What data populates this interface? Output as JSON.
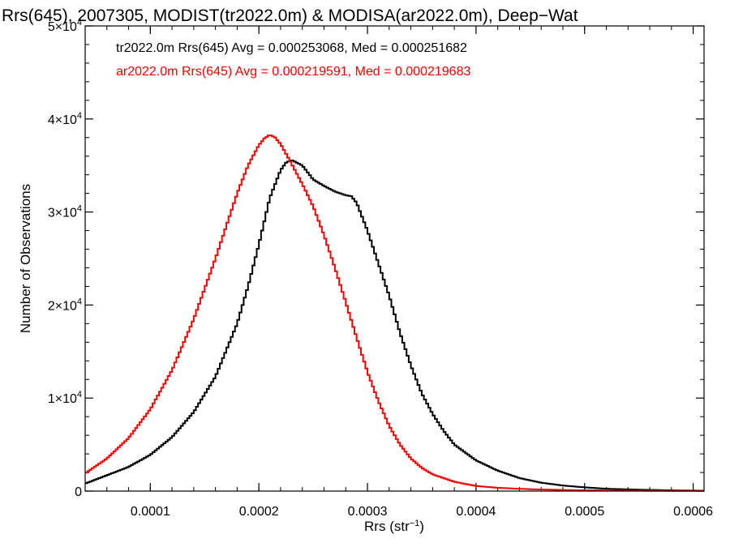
{
  "chart_data": {
    "type": "line",
    "title": "Rrs(645), 2007305, MODIST(tr2022.0m) & MODISA(ar2022.0m), Deep−Wat",
    "xlabel": "Rrs (str",
    "xlabel_sup": "−1",
    "xlabel_end": ")",
    "ylabel": "Number of Observations",
    "xlim": [
      4e-05,
      0.00061
    ],
    "ylim": [
      0,
      50000
    ],
    "x_ticks": [
      {
        "value": 0.0001,
        "label": "0.0001"
      },
      {
        "value": 0.0002,
        "label": "0.0002"
      },
      {
        "value": 0.0003,
        "label": "0.0003"
      },
      {
        "value": 0.0004,
        "label": "0.0004"
      },
      {
        "value": 0.0005,
        "label": "0.0005"
      },
      {
        "value": 0.0006,
        "label": "0.0006"
      }
    ],
    "y_ticks": [
      {
        "value": 0,
        "base": "0",
        "exp": ""
      },
      {
        "value": 10000,
        "base": "1×10",
        "exp": "4"
      },
      {
        "value": 20000,
        "base": "2×10",
        "exp": "4"
      },
      {
        "value": 30000,
        "base": "3×10",
        "exp": "4"
      },
      {
        "value": 40000,
        "base": "4×10",
        "exp": "4"
      },
      {
        "value": 50000,
        "base": "5×10",
        "exp": "4"
      }
    ],
    "annotations": [
      {
        "text": "tr2022.0m Rrs(645) Avg = 0.000253068, Med = 0.000251682",
        "color": "#000000"
      },
      {
        "text": "ar2022.0m Rrs(645) Avg = 0.000219591, Med = 0.000219683",
        "color": "#ff0000"
      }
    ],
    "series": [
      {
        "color": "#000000",
        "x": [
          4e-05,
          6e-05,
          8e-05,
          0.0001,
          0.00012,
          0.00014,
          0.00016,
          0.00018,
          0.00019,
          0.0002,
          0.00021,
          0.00022,
          0.000225,
          0.00023,
          0.00024,
          0.00025,
          0.00026,
          0.00027,
          0.00028,
          0.000285,
          0.00029,
          0.0003,
          0.00031,
          0.00032,
          0.00033,
          0.00034,
          0.00035,
          0.00036,
          0.00037,
          0.00038,
          0.0004,
          0.00042,
          0.00044,
          0.00046,
          0.00048,
          0.0005,
          0.00052,
          0.00055,
          0.00058,
          0.00061
        ],
        "y": [
          800,
          1700,
          2600,
          3900,
          5800,
          8500,
          12300,
          18000,
          22000,
          26500,
          31500,
          34500,
          35300,
          35600,
          35000,
          33500,
          32800,
          32200,
          31800,
          31700,
          31000,
          28000,
          24500,
          21000,
          17000,
          13500,
          10500,
          8300,
          6500,
          5000,
          3300,
          2200,
          1400,
          900,
          600,
          400,
          250,
          150,
          80,
          40
        ]
      },
      {
        "color": "#ff0000",
        "x": [
          4e-05,
          6e-05,
          8e-05,
          0.0001,
          0.00012,
          0.00014,
          0.00016,
          0.00018,
          0.00019,
          0.0002,
          0.000205,
          0.00021,
          0.000215,
          0.00022,
          0.00023,
          0.00024,
          0.00025,
          0.00026,
          0.00027,
          0.00028,
          0.00029,
          0.0003,
          0.00031,
          0.00032,
          0.00033,
          0.00034,
          0.00035,
          0.00036,
          0.00038,
          0.0004,
          0.00042,
          0.00045,
          0.00048,
          0.0005,
          0.00052,
          0.00055,
          0.00058,
          0.00061
        ],
        "y": [
          1900,
          3500,
          5700,
          8800,
          13000,
          18500,
          25000,
          32000,
          35000,
          37200,
          37900,
          38300,
          38000,
          37300,
          35200,
          33000,
          30600,
          27500,
          24000,
          20300,
          16500,
          12800,
          9700,
          7000,
          5000,
          3500,
          2500,
          1800,
          1000,
          550,
          350,
          200,
          120,
          80,
          60,
          40,
          25,
          15
        ]
      }
    ]
  }
}
